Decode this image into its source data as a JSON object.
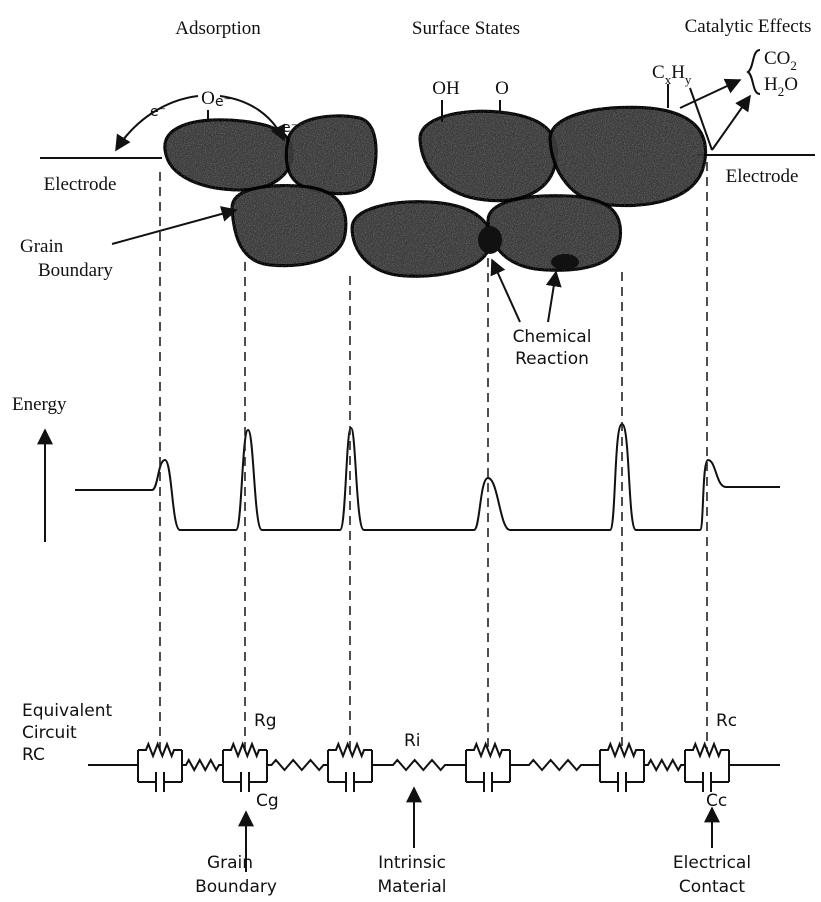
{
  "header": {
    "adsorption": "Adsorption",
    "surface_states": "Surface States",
    "catalytic_effects": "Catalytic Effects"
  },
  "electrode_left": "Electrode",
  "electrode_right": "Electrode",
  "adsorbate": "O",
  "electron_labels": [
    "e⁻",
    "e⁻",
    "e⁻"
  ],
  "surface_species": [
    "OH",
    "O"
  ],
  "hydrocarbon": [
    "C",
    "x",
    "H",
    "y"
  ],
  "products": {
    "co2": [
      "CO",
      "2"
    ],
    "h2o": [
      "H",
      "2",
      "O"
    ]
  },
  "grain_boundary_label": [
    "Grain",
    "Boundary"
  ],
  "chemical_reaction_label": [
    "Chemical",
    "Reaction"
  ],
  "energy_label": "Energy",
  "circuit_label": [
    "Equivalent",
    "Circuit",
    "RC"
  ],
  "circuit_components": {
    "rg": "Rg",
    "ri": "Ri",
    "rc": "Rc",
    "cg": "Cg",
    "cc": "Cc"
  },
  "bottom_labels": [
    [
      "Grain",
      "Boundary"
    ],
    [
      "Intrinsic",
      "Material"
    ],
    [
      "Electrical",
      "Contact"
    ]
  ]
}
